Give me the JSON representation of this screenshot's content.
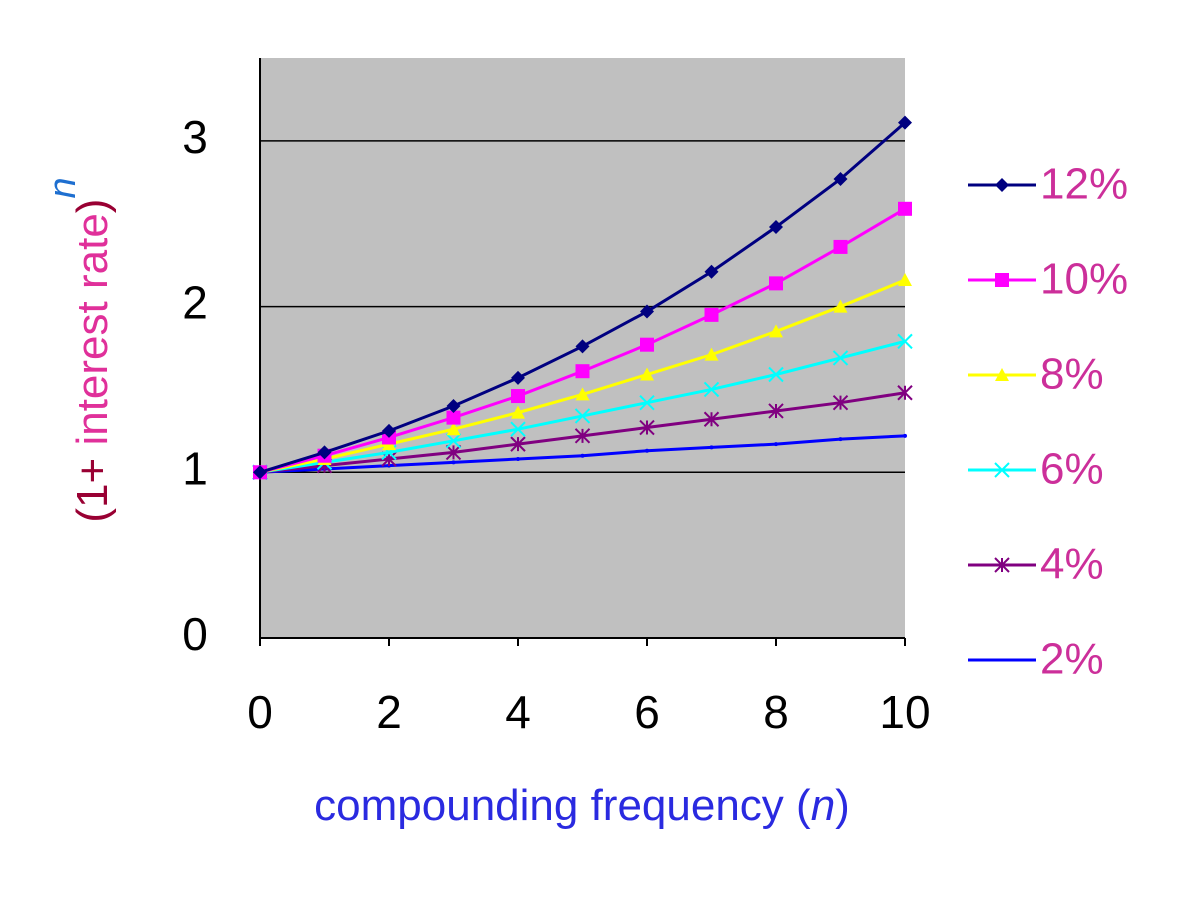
{
  "chart_data": {
    "type": "line",
    "y_label": [
      "(1+ ",
      "interest rate",
      ")",
      "n"
    ],
    "x_label": [
      "compounding frequency (",
      "n",
      ")"
    ],
    "x": [
      0,
      1,
      2,
      3,
      4,
      5,
      6,
      7,
      8,
      9,
      10
    ],
    "series": [
      {
        "name": "12%",
        "color": "#000080",
        "marker": "diamond",
        "values": [
          1,
          1.12,
          1.25,
          1.4,
          1.57,
          1.76,
          1.97,
          2.21,
          2.48,
          2.77,
          3.11
        ]
      },
      {
        "name": "10%",
        "color": "#ff00ff",
        "marker": "square",
        "values": [
          1,
          1.1,
          1.21,
          1.33,
          1.46,
          1.61,
          1.77,
          1.95,
          2.14,
          2.36,
          2.59
        ]
      },
      {
        "name": "8%",
        "color": "#ffff00",
        "marker": "triangle",
        "values": [
          1,
          1.08,
          1.17,
          1.26,
          1.36,
          1.47,
          1.59,
          1.71,
          1.85,
          2.0,
          2.16
        ]
      },
      {
        "name": "6%",
        "color": "#00ffff",
        "marker": "cross",
        "values": [
          1,
          1.06,
          1.12,
          1.19,
          1.26,
          1.34,
          1.42,
          1.5,
          1.59,
          1.69,
          1.79
        ]
      },
      {
        "name": "4%",
        "color": "#800080",
        "marker": "star",
        "values": [
          1,
          1.04,
          1.08,
          1.12,
          1.17,
          1.22,
          1.27,
          1.32,
          1.37,
          1.42,
          1.48
        ]
      },
      {
        "name": "2%",
        "color": "#0000ff",
        "marker": "none",
        "values": [
          1,
          1.02,
          1.04,
          1.06,
          1.08,
          1.1,
          1.13,
          1.15,
          1.17,
          1.2,
          1.22
        ]
      }
    ],
    "xlim": [
      0,
      10
    ],
    "xticks": [
      0,
      2,
      4,
      6,
      8,
      10
    ],
    "ylim": [
      0,
      3.5
    ],
    "yticks": [
      0,
      1,
      2,
      3
    ],
    "grid": true,
    "legend": "right"
  }
}
